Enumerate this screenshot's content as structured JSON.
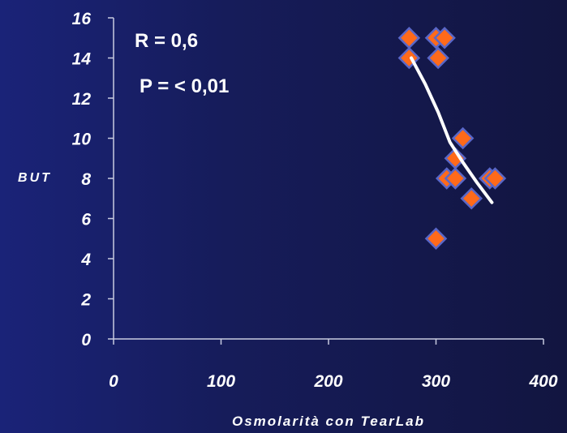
{
  "chart_data": {
    "type": "scatter",
    "xlabel": "Osmolarità con TearLab",
    "ylabel": "BUT",
    "xlim": [
      0,
      400
    ],
    "ylim": [
      0,
      16
    ],
    "x_ticks": [
      0,
      100,
      200,
      300,
      400
    ],
    "y_ticks": [
      0,
      2,
      4,
      6,
      8,
      10,
      12,
      14,
      16
    ],
    "grid": false,
    "annotations": [
      "R = 0,6",
      "P = < 0,01"
    ],
    "series": [
      {
        "points": [
          {
            "x": 275,
            "y": 15
          },
          {
            "x": 275,
            "y": 14
          },
          {
            "x": 300,
            "y": 15
          },
          {
            "x": 308,
            "y": 15
          },
          {
            "x": 302,
            "y": 14
          },
          {
            "x": 325,
            "y": 10
          },
          {
            "x": 318,
            "y": 9
          },
          {
            "x": 310,
            "y": 8
          },
          {
            "x": 318,
            "y": 8
          },
          {
            "x": 350,
            "y": 8
          },
          {
            "x": 355,
            "y": 8
          },
          {
            "x": 333,
            "y": 7
          },
          {
            "x": 300,
            "y": 5
          }
        ]
      }
    ],
    "trendline": [
      {
        "x": 277,
        "y": 14
      },
      {
        "x": 290,
        "y": 12.7
      },
      {
        "x": 302,
        "y": 11.3
      },
      {
        "x": 313,
        "y": 9.8
      },
      {
        "x": 325,
        "y": 8.8
      },
      {
        "x": 338,
        "y": 7.8
      },
      {
        "x": 352,
        "y": 6.8
      }
    ],
    "colors": {
      "marker_fill": "#ff6a1a",
      "marker_stroke": "#5a67c8",
      "trendline": "#ffffff",
      "axis": "#c8cbe0",
      "text": "#ffffff"
    }
  }
}
